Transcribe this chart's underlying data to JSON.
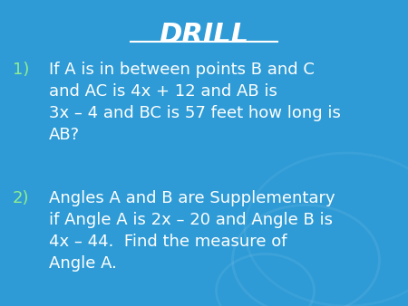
{
  "title": "DRILL",
  "background_color": "#2E9BD6",
  "title_color": "white",
  "text_color": "white",
  "number_color": "#90EE90",
  "item1": "If A is in between points B and C\nand AC is 4x + 12 and AB is\n3x – 4 and BC is 57 feet how long is\nAB?",
  "item2": "Angles A and B are Supplementary\nif Angle A is 2x – 20 and Angle B is\n4x – 44.  Find the measure of\nAngle A.",
  "figsize": [
    4.5,
    3.38
  ],
  "dpi": 100
}
